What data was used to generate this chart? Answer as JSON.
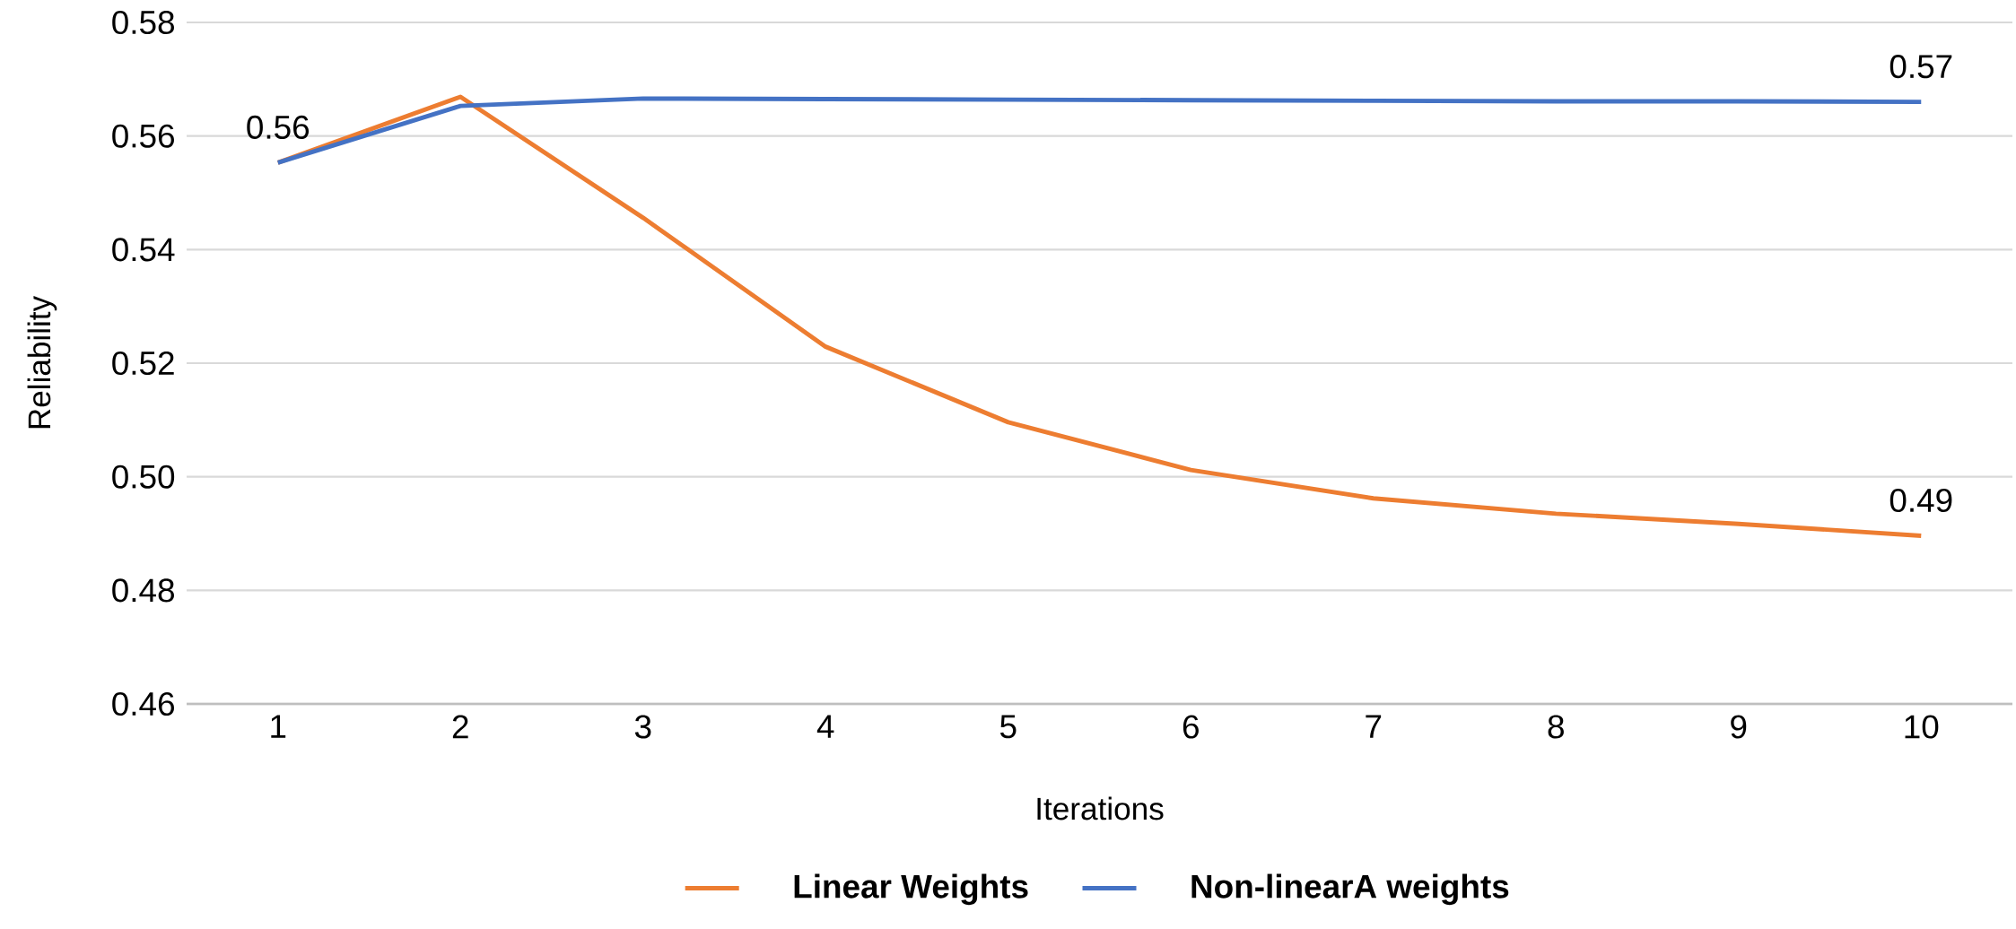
{
  "chart_data": {
    "type": "line",
    "xlabel": "Iterations",
    "ylabel": "Reliability",
    "categories": [
      "1",
      "2",
      "3",
      "4",
      "5",
      "6",
      "7",
      "8",
      "9",
      "10"
    ],
    "series": [
      {
        "name": "Linear Weights",
        "color": "#ed7d31",
        "values": [
          0.5553,
          0.5669,
          0.5456,
          0.5229,
          0.5096,
          0.5012,
          0.4962,
          0.4935,
          0.4917,
          0.4896
        ],
        "value_labels": [
          null,
          null,
          null,
          null,
          null,
          null,
          null,
          null,
          null,
          "0.49"
        ]
      },
      {
        "name": "Non-linearA weights",
        "color": "#4472c4",
        "values": [
          0.5553,
          0.5653,
          0.5666,
          0.5665,
          0.5664,
          0.5663,
          0.5662,
          0.5661,
          0.5661,
          0.566
        ],
        "value_labels": [
          "0.56",
          null,
          null,
          null,
          null,
          null,
          null,
          null,
          null,
          "0.57"
        ]
      }
    ],
    "ylim": [
      0.46,
      0.58
    ],
    "yticks": [
      {
        "value": 0.46,
        "label": "0.46"
      },
      {
        "value": 0.48,
        "label": "0.48"
      },
      {
        "value": 0.5,
        "label": "0.50"
      },
      {
        "value": 0.52,
        "label": "0.52"
      },
      {
        "value": 0.54,
        "label": "0.54"
      },
      {
        "value": 0.56,
        "label": "0.56"
      },
      {
        "value": 0.58,
        "label": "0.58"
      }
    ],
    "grid": "y",
    "legend": "bottom",
    "marker": "none",
    "line_style": "solid"
  }
}
